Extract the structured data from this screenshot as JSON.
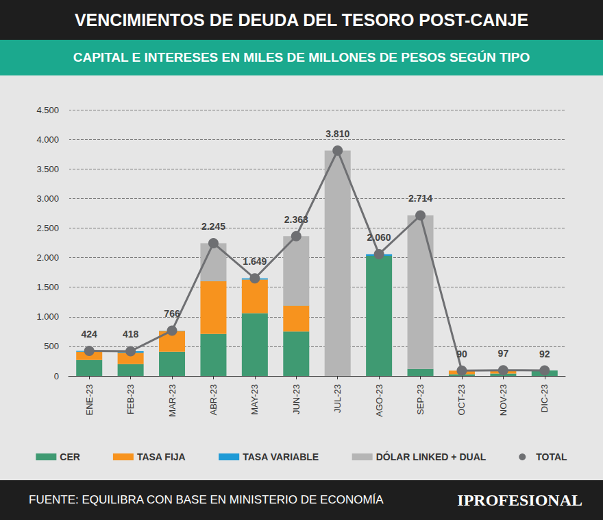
{
  "chart_data": {
    "type": "bar",
    "title": "VENCIMIENTOS DE DEUDA DEL TESORO POST-CANJE",
    "subtitle": "CAPITAL E INTERESES EN MILES DE MILLONES DE PESOS  SEGÚN TIPO",
    "source": "FUENTE: EQUILIBRA CON BASE EN MINISTERIO DE ECONOMÍA",
    "brand": "IPROFESIONAL",
    "stacked": true,
    "grid": true,
    "legend": "bottom",
    "categories": [
      "ENE-23",
      "FEB-23",
      "MAR-23",
      "ABR-23",
      "MAY-23",
      "JUN-23",
      "JUL-23",
      "AGO-23",
      "SEP-23",
      "OCT-23",
      "NOV-23",
      "DIC-23"
    ],
    "series": [
      {
        "name": "CER",
        "type": "bar",
        "color": "#3f9a72",
        "values": [
          270,
          200,
          410,
          710,
          1060,
          750,
          0,
          2030,
          120,
          30,
          40,
          92
        ]
      },
      {
        "name": "TASA FIJA",
        "type": "bar",
        "color": "#f7931e",
        "values": [
          140,
          190,
          350,
          890,
          570,
          440,
          0,
          0,
          0,
          60,
          57,
          0
        ]
      },
      {
        "name": "TASA VARIABLE",
        "type": "bar",
        "color": "#1e9ad6",
        "values": [
          14,
          28,
          6,
          5,
          19,
          3,
          0,
          30,
          0,
          0,
          0,
          0
        ]
      },
      {
        "name": "DÓLAR LINKED + DUAL",
        "type": "bar",
        "color": "#b5b5b5",
        "values": [
          0,
          0,
          0,
          640,
          0,
          1170,
          3810,
          0,
          2594,
          0,
          0,
          0
        ]
      },
      {
        "name": "TOTAL",
        "type": "line",
        "color": "#6e6f72",
        "marker": "circle",
        "line_style": "solid",
        "data_labels": true,
        "values": [
          424,
          418,
          766,
          2245,
          1649,
          2363,
          3810,
          2060,
          2714,
          90,
          97,
          92
        ],
        "value_labels": [
          "424",
          "418",
          "766",
          "2.245",
          "1.649",
          "2.363",
          "3.810",
          "2.060",
          "2.714",
          "90",
          "97",
          "92"
        ]
      }
    ],
    "ylim": [
      0,
      4500
    ],
    "yticks": [
      0,
      500,
      {
        "value": 1000,
        "label": "1.000"
      },
      {
        "value": 1500,
        "label": "1.500"
      },
      {
        "value": 2000,
        "label": "2.000"
      },
      {
        "value": 2500,
        "label": "2.500"
      },
      {
        "value": 3000,
        "label": "3.000"
      },
      {
        "value": 3500,
        "label": "3.500"
      },
      {
        "value": 4000,
        "label": "4.000"
      },
      {
        "value": 4500,
        "label": "4.500"
      }
    ]
  }
}
